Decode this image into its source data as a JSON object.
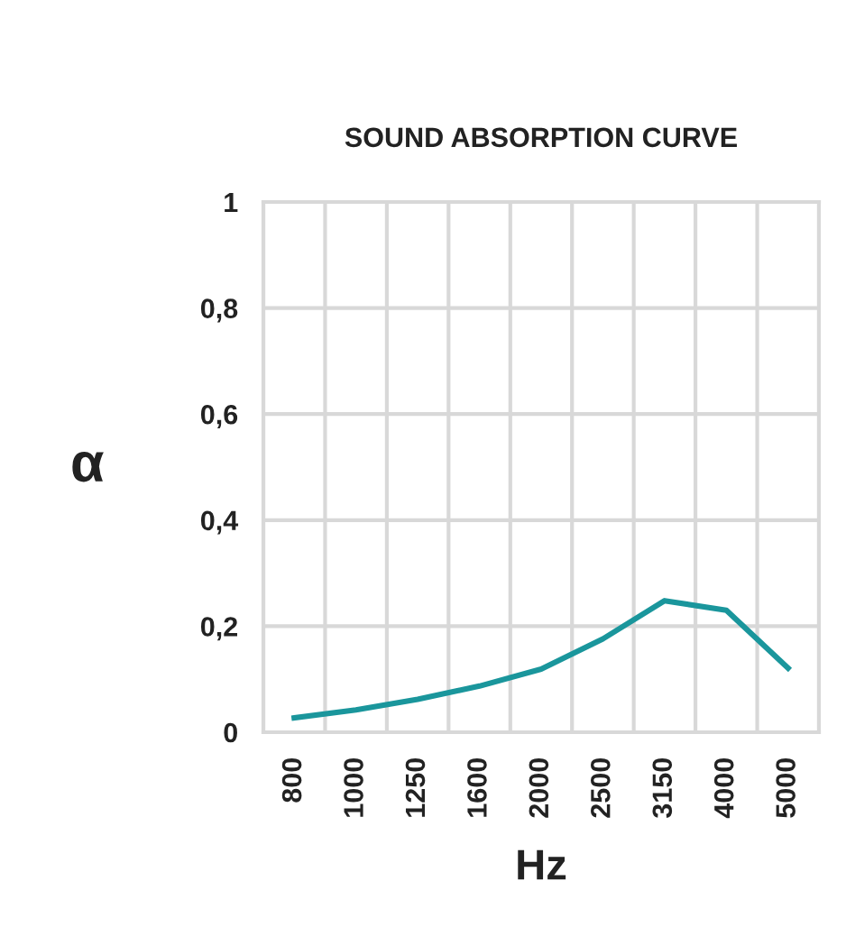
{
  "chart_data": {
    "type": "line",
    "title": "SOUND ABSORPTION CURVE",
    "xlabel": "Hz",
    "ylabel": "α",
    "categories": [
      "800",
      "1000",
      "1250",
      "1600",
      "2000",
      "2500",
      "3150",
      "4000",
      "5000"
    ],
    "series": [
      {
        "color": "#1a969c",
        "values": [
          0.027,
          0.042,
          0.062,
          0.087,
          0.119,
          0.176,
          0.248,
          0.23,
          0.121
        ]
      }
    ],
    "ylim": [
      0,
      1
    ],
    "yticks": [
      0,
      {
        "value": 0.2,
        "label": "0,2"
      },
      {
        "value": 0.4,
        "label": "0,4"
      },
      {
        "value": 0.6,
        "label": "0,6"
      },
      {
        "value": 0.8,
        "label": "0,8"
      },
      1
    ],
    "grid": true,
    "marker": "none",
    "line_style": "solid"
  }
}
